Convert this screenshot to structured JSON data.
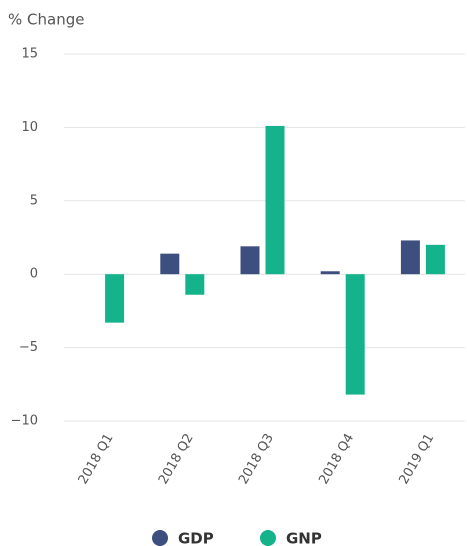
{
  "chart_data": {
    "type": "bar",
    "ylabel": "% Change",
    "categories": [
      "2018 Q1",
      "2018 Q2",
      "2018 Q3",
      "2018 Q4",
      "2019 Q1"
    ],
    "series": [
      {
        "name": "GDP",
        "color": "#3d4f7e",
        "values": [
          null,
          1.4,
          1.9,
          0.2,
          2.3
        ]
      },
      {
        "name": "GNP",
        "color": "#14b38b",
        "values": [
          -3.3,
          -1.4,
          10.1,
          -8.2,
          2.0
        ]
      }
    ],
    "ylim": [
      -10,
      15
    ],
    "yticks": [
      {
        "value": -10,
        "label": "−10"
      },
      {
        "value": -5,
        "label": "−5"
      },
      0,
      5,
      10,
      15
    ],
    "grid": true
  }
}
